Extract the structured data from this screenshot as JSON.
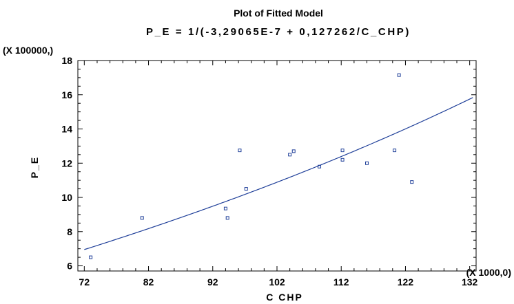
{
  "chart_data": {
    "type": "scatter",
    "title": "Plot of Fitted Model",
    "subtitle": "P_E = 1/(-3,29065E-7 + 0,127262/C_CHP)",
    "xlabel": "C CHP",
    "ylabel": "P_E",
    "x_multiplier": "(X 1000,0)",
    "y_multiplier": "(X 100000,)",
    "xlim": [
      71,
      133
    ],
    "ylim": [
      5.7,
      18
    ],
    "xticks": [
      72,
      82,
      92,
      102,
      112,
      122,
      132
    ],
    "yticks": [
      6,
      8,
      10,
      12,
      14,
      16,
      18
    ],
    "x_tick_labels": [
      "72",
      "82",
      "92",
      "102",
      "112",
      "122",
      "132"
    ],
    "y_tick_labels": [
      "6",
      "8",
      "10",
      "12",
      "14",
      "16",
      "18"
    ],
    "grid": false,
    "points_color": "#1f3f99",
    "line_color": "#1f3f99",
    "points": [
      {
        "x": 73.0,
        "y": 6.5
      },
      {
        "x": 81.0,
        "y": 8.8
      },
      {
        "x": 94.0,
        "y": 9.35
      },
      {
        "x": 94.3,
        "y": 8.8
      },
      {
        "x": 96.2,
        "y": 12.75
      },
      {
        "x": 97.2,
        "y": 10.5
      },
      {
        "x": 104.0,
        "y": 12.5
      },
      {
        "x": 104.6,
        "y": 12.7
      },
      {
        "x": 108.6,
        "y": 11.8
      },
      {
        "x": 112.2,
        "y": 12.75
      },
      {
        "x": 112.2,
        "y": 12.2
      },
      {
        "x": 116.0,
        "y": 12.0
      },
      {
        "x": 120.3,
        "y": 12.75
      },
      {
        "x": 121.0,
        "y": 17.15
      },
      {
        "x": 123.0,
        "y": 10.9
      }
    ],
    "fit": {
      "a": -3.29065e-07,
      "b": 0.127262,
      "x_range": [
        72,
        132.5
      ],
      "x_scale": 1000,
      "y_scale": 100000
    }
  }
}
